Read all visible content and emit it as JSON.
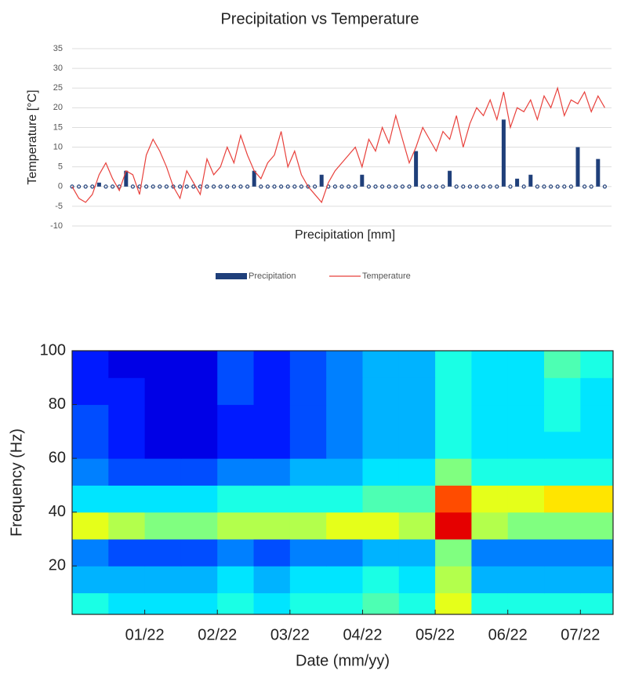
{
  "chart_data": [
    {
      "type": "bar_line",
      "title": "Precipitation vs Temperature",
      "ylabel": "Temperature [°C]",
      "xlabel": "Precipitation [mm]",
      "ylim": [
        -10,
        35
      ],
      "yticks": [
        -10,
        -5,
        0,
        5,
        10,
        15,
        20,
        25,
        30,
        35
      ],
      "grid": true,
      "legend": "bottom",
      "xlim": [
        0,
        240
      ],
      "x": [
        0,
        3,
        6,
        9,
        12,
        15,
        18,
        21,
        24,
        27,
        30,
        33,
        36,
        39,
        42,
        45,
        48,
        51,
        54,
        57,
        60,
        63,
        66,
        69,
        72,
        75,
        78,
        81,
        84,
        87,
        90,
        93,
        96,
        99,
        102,
        105,
        108,
        111,
        114,
        117,
        120,
        123,
        126,
        129,
        132,
        135,
        138,
        141,
        144,
        147,
        150,
        153,
        156,
        159,
        162,
        165,
        168,
        171,
        174,
        177,
        180,
        183,
        186,
        189,
        192,
        195,
        198,
        201,
        204,
        207,
        210,
        213,
        216,
        219,
        222,
        225,
        228,
        231,
        234,
        237
      ],
      "series": [
        {
          "name": "Precipitation",
          "color": "#1f3f7a",
          "type": "bar",
          "values": [
            0,
            0,
            0,
            0,
            1,
            0,
            0,
            0,
            4,
            0,
            0,
            0,
            0,
            0,
            0,
            0,
            0,
            0,
            0,
            0,
            0,
            0,
            0,
            0,
            0,
            0,
            0,
            4,
            0,
            0,
            0,
            0,
            0,
            0,
            0,
            0,
            0,
            3,
            0,
            0,
            0,
            0,
            0,
            3,
            0,
            0,
            0,
            0,
            0,
            0,
            0,
            9,
            0,
            0,
            0,
            0,
            4,
            0,
            0,
            0,
            0,
            0,
            0,
            0,
            17,
            0,
            2,
            0,
            3,
            0,
            0,
            0,
            0,
            0,
            0,
            10,
            0,
            0,
            7,
            0
          ]
        },
        {
          "name": "Temperature",
          "color": "#e8413c",
          "type": "line",
          "values": [
            0,
            -3,
            -4,
            -2,
            3,
            6,
            2,
            -1,
            4,
            3,
            -2,
            8,
            12,
            9,
            5,
            0,
            -3,
            4,
            1,
            -2,
            7,
            3,
            5,
            10,
            6,
            13,
            8,
            4,
            2,
            6,
            8,
            14,
            5,
            9,
            3,
            0,
            -2,
            -4,
            1,
            4,
            6,
            8,
            10,
            5,
            12,
            9,
            15,
            11,
            18,
            12,
            6,
            10,
            15,
            12,
            9,
            14,
            12,
            18,
            10,
            16,
            20,
            18,
            22,
            17,
            24,
            15,
            20,
            19,
            22,
            17,
            23,
            20,
            25,
            18,
            22,
            21,
            24,
            19,
            23,
            20
          ]
        }
      ]
    },
    {
      "type": "heatmap",
      "ylabel": "Frequency (Hz)",
      "xlabel": "Date (mm/yy)",
      "colormap": "jet",
      "xlim": [
        0,
        7.45
      ],
      "ylim": [
        2,
        100
      ],
      "xticks": [
        {
          "value": 1,
          "label": "01/22"
        },
        {
          "value": 2,
          "label": "02/22"
        },
        {
          "value": 3,
          "label": "03/22"
        },
        {
          "value": 4,
          "label": "04/22"
        },
        {
          "value": 5,
          "label": "05/22"
        },
        {
          "value": 6,
          "label": "06/22"
        },
        {
          "value": 7,
          "label": "07/22"
        }
      ],
      "yticks": [
        20,
        40,
        60,
        80,
        100
      ],
      "xbins": [
        0,
        0.5,
        1,
        1.5,
        2,
        2.5,
        3,
        3.5,
        4,
        4.5,
        5,
        5.5,
        6,
        6.5,
        7,
        7.45
      ],
      "ybins": [
        2,
        10,
        20,
        30,
        40,
        50,
        60,
        70,
        80,
        90,
        100
      ],
      "values": [
        [
          0.4,
          0.35,
          0.35,
          0.35,
          0.4,
          0.35,
          0.4,
          0.4,
          0.45,
          0.4,
          0.6,
          0.4,
          0.4,
          0.4,
          0.4
        ],
        [
          0.3,
          0.3,
          0.3,
          0.3,
          0.35,
          0.3,
          0.35,
          0.35,
          0.4,
          0.35,
          0.55,
          0.3,
          0.3,
          0.3,
          0.3
        ],
        [
          0.25,
          0.2,
          0.2,
          0.2,
          0.25,
          0.2,
          0.25,
          0.25,
          0.3,
          0.3,
          0.5,
          0.25,
          0.25,
          0.25,
          0.25
        ],
        [
          0.6,
          0.55,
          0.5,
          0.5,
          0.55,
          0.55,
          0.55,
          0.6,
          0.6,
          0.55,
          0.9,
          0.55,
          0.5,
          0.5,
          0.5
        ],
        [
          0.35,
          0.35,
          0.35,
          0.35,
          0.4,
          0.4,
          0.4,
          0.4,
          0.45,
          0.45,
          0.8,
          0.6,
          0.6,
          0.65,
          0.65
        ],
        [
          0.25,
          0.2,
          0.2,
          0.2,
          0.25,
          0.25,
          0.3,
          0.3,
          0.35,
          0.35,
          0.5,
          0.4,
          0.4,
          0.4,
          0.4
        ],
        [
          0.2,
          0.15,
          0.1,
          0.1,
          0.15,
          0.15,
          0.2,
          0.25,
          0.3,
          0.3,
          0.4,
          0.35,
          0.35,
          0.35,
          0.35
        ],
        [
          0.2,
          0.15,
          0.1,
          0.1,
          0.15,
          0.15,
          0.2,
          0.25,
          0.3,
          0.3,
          0.4,
          0.35,
          0.35,
          0.4,
          0.35
        ],
        [
          0.15,
          0.15,
          0.1,
          0.1,
          0.2,
          0.15,
          0.2,
          0.25,
          0.3,
          0.3,
          0.4,
          0.35,
          0.35,
          0.4,
          0.35
        ],
        [
          0.15,
          0.1,
          0.1,
          0.1,
          0.2,
          0.15,
          0.2,
          0.25,
          0.3,
          0.3,
          0.4,
          0.35,
          0.35,
          0.45,
          0.4
        ]
      ]
    }
  ]
}
